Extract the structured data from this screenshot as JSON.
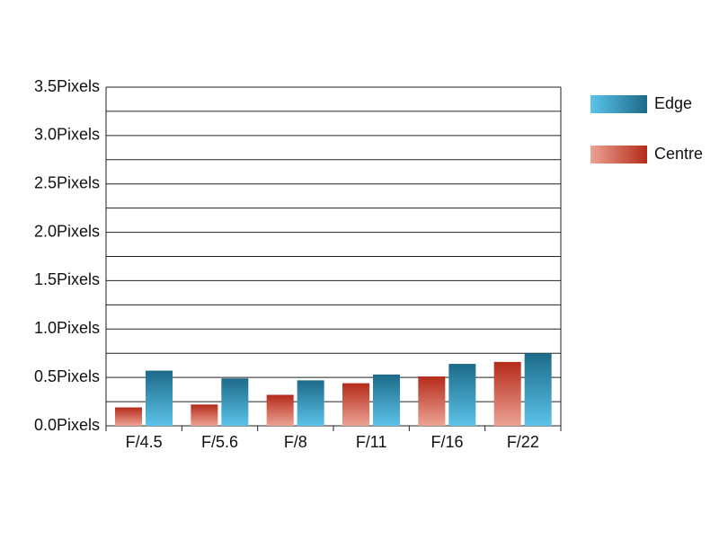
{
  "chart_data": {
    "type": "bar",
    "categories": [
      "F/4.5",
      "F/5.6",
      "F/8",
      "F/11",
      "F/16",
      "F/22"
    ],
    "series": [
      {
        "name": "Edge",
        "color": "#1c6a88",
        "gradient": [
          "#5cc3ea",
          "#1c6a88"
        ],
        "values": [
          0.57,
          0.49,
          0.47,
          0.53,
          0.64,
          0.75
        ]
      },
      {
        "name": "Centre",
        "color": "#b52a1a",
        "gradient": [
          "#eca394",
          "#b52a1a"
        ],
        "values": [
          0.19,
          0.22,
          0.32,
          0.44,
          0.51,
          0.66
        ]
      }
    ],
    "ylim": [
      0,
      3.5
    ],
    "yticks": [
      {
        "value": 0,
        "label": "0.0Pixels"
      },
      {
        "value": 0.5,
        "label": "0.5Pixels"
      },
      {
        "value": 1,
        "label": "1.0Pixels"
      },
      {
        "value": 1.5,
        "label": "1.5Pixels"
      },
      {
        "value": 2,
        "label": "2.0Pixels"
      },
      {
        "value": 2.5,
        "label": "2.5Pixels"
      },
      {
        "value": 3,
        "label": "3.0Pixels"
      },
      {
        "value": 3.5,
        "label": "3.5Pixels"
      }
    ],
    "minor_yticks": [
      0.25,
      0.75,
      1.25,
      1.75,
      2.25,
      2.75,
      3.25
    ],
    "grid": true,
    "legend": "right"
  }
}
